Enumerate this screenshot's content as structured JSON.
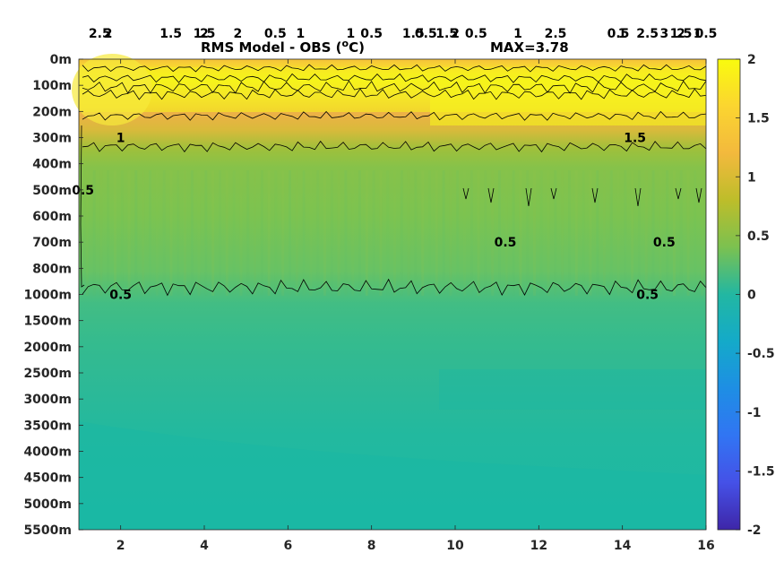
{
  "chart_data": {
    "type": "heatmap",
    "title": "RMS Model - OBS (",
    "title_unit": "C)",
    "title_degree": "o",
    "annotation": "MAX=3.78",
    "x_ticks": [
      "2",
      "4",
      "6",
      "8",
      "10",
      "12",
      "14",
      "16"
    ],
    "x_tick_values": [
      2,
      4,
      6,
      8,
      10,
      12,
      14,
      16
    ],
    "xlim": [
      1,
      16
    ],
    "y_ticks": [
      "0m",
      "100m",
      "200m",
      "300m",
      "400m",
      "500m",
      "600m",
      "700m",
      "800m",
      "1000m",
      "1500m",
      "2000m",
      "2500m",
      "3000m",
      "3500m",
      "4000m",
      "4500m",
      "5000m",
      "5500m"
    ],
    "colorbar": {
      "range": [
        -2,
        2
      ],
      "ticks": [
        "2",
        "1.5",
        "1",
        "0.5",
        "0",
        "-0.5",
        "-1",
        "-1.5",
        "-2"
      ],
      "tick_values": [
        2,
        1.5,
        1,
        0.5,
        0,
        -0.5,
        -1,
        -1.5,
        -2
      ],
      "colormap": "parula"
    },
    "depth_profile": [
      {
        "depth": "0m",
        "value": 1.0
      },
      {
        "depth": "100m",
        "value": 2.2
      },
      {
        "depth": "200m",
        "value": 1.6
      },
      {
        "depth": "300m",
        "value": 1.1
      },
      {
        "depth": "400m",
        "value": 0.85
      },
      {
        "depth": "500m",
        "value": 0.7
      },
      {
        "depth": "600m",
        "value": 0.68
      },
      {
        "depth": "700m",
        "value": 0.65
      },
      {
        "depth": "800m",
        "value": 0.6
      },
      {
        "depth": "1000m",
        "value": 0.45
      },
      {
        "depth": "1500m",
        "value": 0.38
      },
      {
        "depth": "2000m",
        "value": 0.33
      },
      {
        "depth": "2500m",
        "value": 0.3
      },
      {
        "depth": "3000m",
        "value": 0.25
      },
      {
        "depth": "3500m",
        "value": 0.25
      },
      {
        "depth": "4000m",
        "value": 0.22
      },
      {
        "depth": "4500m",
        "value": 0.22
      },
      {
        "depth": "5000m",
        "value": 0.2
      },
      {
        "depth": "5500m",
        "value": 0.2
      }
    ],
    "contour_levels": [
      0.5,
      1,
      1.5,
      2,
      2.5,
      3
    ],
    "contour_labels": [
      {
        "text": "1",
        "x": 2.0,
        "y": "300m"
      },
      {
        "text": "1",
        "x": 6.3,
        "y": "250m"
      },
      {
        "text": "1",
        "x": 11.5,
        "y": "370m"
      },
      {
        "text": "1",
        "x": 7.5,
        "y": "20m"
      },
      {
        "text": "1",
        "x": 14.0,
        "y": "20m"
      },
      {
        "text": "1",
        "x": 15.8,
        "y": "20m"
      },
      {
        "text": "1.5",
        "x": 3.2,
        "y": "60m"
      },
      {
        "text": "1.5",
        "x": 9.0,
        "y": "40m"
      },
      {
        "text": "1.5",
        "x": 4.0,
        "y": "160m"
      },
      {
        "text": "1.5",
        "x": 9.8,
        "y": "210m"
      },
      {
        "text": "1.5",
        "x": 14.3,
        "y": "300m"
      },
      {
        "text": "1.5",
        "x": 15.4,
        "y": "40m"
      },
      {
        "text": "2",
        "x": 4.0,
        "y": "110m"
      },
      {
        "text": "2",
        "x": 4.8,
        "y": "110m"
      },
      {
        "text": "2",
        "x": 10.0,
        "y": "70m"
      },
      {
        "text": "2",
        "x": 10.0,
        "y": "150m"
      },
      {
        "text": "2",
        "x": 15.4,
        "y": "240m"
      },
      {
        "text": "2.5",
        "x": 12.4,
        "y": "130m"
      },
      {
        "text": "2.5",
        "x": 14.6,
        "y": "80m"
      },
      {
        "text": "3",
        "x": 15.0,
        "y": "130m"
      },
      {
        "text": "2",
        "x": 1.7,
        "y": "130m"
      },
      {
        "text": "2.5",
        "x": 1.5,
        "y": "90m"
      },
      {
        "text": "0.5",
        "x": 1.1,
        "y": "500m"
      },
      {
        "text": "0.5",
        "x": 2.0,
        "y": "1000m"
      },
      {
        "text": "0.5",
        "x": 5.7,
        "y": "950m"
      },
      {
        "text": "0.5",
        "x": 8.0,
        "y": "850m"
      },
      {
        "text": "0.5",
        "x": 9.3,
        "y": "850m"
      },
      {
        "text": "0.5",
        "x": 10.5,
        "y": "900m"
      },
      {
        "text": "0.5",
        "x": 11.2,
        "y": "700m"
      },
      {
        "text": "0.5",
        "x": 13.9,
        "y": "650m"
      },
      {
        "text": "0.5",
        "x": 14.6,
        "y": "1000m"
      },
      {
        "text": "0.5",
        "x": 15.0,
        "y": "700m"
      },
      {
        "text": "0.5",
        "x": 16.0,
        "y": "650m"
      }
    ]
  }
}
